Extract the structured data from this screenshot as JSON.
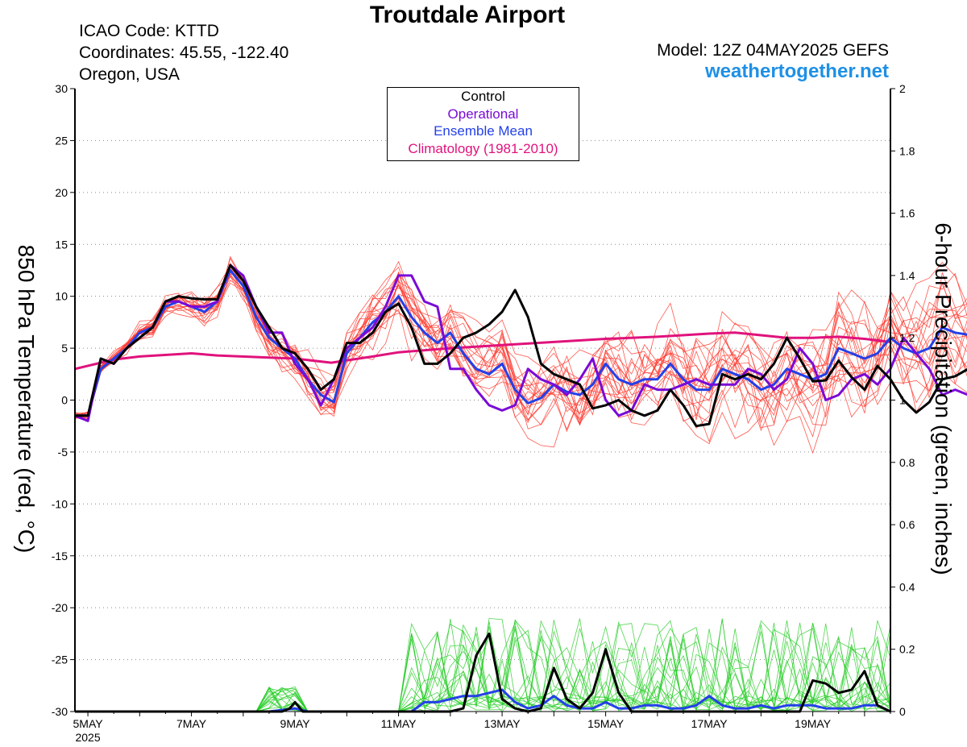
{
  "header": {
    "title": "Troutdale Airport",
    "icao": "ICAO Code: KTTD",
    "coordinates": "Coordinates: 45.55, -122.40",
    "region": "Oregon, USA",
    "model": "Model: 12Z 04MAY2025 GEFS",
    "site": "weathertogether.net"
  },
  "colors": {
    "control": "#000000",
    "operational": "#7a0ad6",
    "ensemble_mean": "#2440e8",
    "climatology": "#e0127c",
    "members_temp": "#ff3b30",
    "members_precip": "#22cc22",
    "site": "#1e90e6"
  },
  "chart_data": {
    "type": "line",
    "title": "Troutdale Airport",
    "ylabel": "850 hPa Temperature (red, °C)",
    "y2label": "6-hour Precipitation (green, inches)",
    "ylim": [
      -30,
      30
    ],
    "y2lim": [
      0,
      2
    ],
    "yticks": [
      -30,
      -25,
      -20,
      -15,
      -10,
      -5,
      0,
      5,
      10,
      15,
      20,
      25,
      30
    ],
    "y2ticks": [
      0,
      0.2,
      0.4,
      0.6,
      0.8,
      1,
      1.2,
      1.4,
      1.6,
      1.8,
      2
    ],
    "xlim": [
      4.75,
      20.5
    ],
    "xticks": [
      {
        "x": 5,
        "label": "5MAY",
        "sub": "2025"
      },
      {
        "x": 7,
        "label": "7MAY"
      },
      {
        "x": 9,
        "label": "9MAY"
      },
      {
        "x": 11,
        "label": "11MAY"
      },
      {
        "x": 13,
        "label": "13MAY"
      },
      {
        "x": 15,
        "label": "15MAY"
      },
      {
        "x": 17,
        "label": "17MAY"
      },
      {
        "x": 19,
        "label": "19MAY"
      }
    ],
    "legend": {
      "placement": "top-center",
      "entries": [
        "Control",
        "Operational",
        "Ensemble Mean",
        "Climatology (1981-2010)"
      ]
    },
    "grid": true,
    "x_note": "x values are days of May 2025 (valid time); temperature series every 6 hours from 5 May 00Z",
    "series": [
      {
        "name": "Control",
        "axis": "temp",
        "color": "#000000",
        "width": 3,
        "x0": 4.75,
        "dx": 0.25,
        "values": [
          -1.5,
          -1.5,
          4,
          3.5,
          5,
          6,
          7,
          9.5,
          10,
          9.8,
          9.7,
          9.7,
          13,
          11.5,
          9,
          7,
          5,
          4.5,
          3,
          1,
          2,
          5.5,
          5.5,
          6.5,
          8.5,
          9.3,
          7,
          3.5,
          3.5,
          4.5,
          6,
          6.5,
          7.3,
          8.5,
          10.6,
          8,
          3.5,
          2.5,
          2,
          1.5,
          -0.8,
          -0.5,
          0,
          -1,
          -1.5,
          -1,
          1,
          -0.5,
          -2.5,
          -2.3,
          2.5,
          2,
          2.5,
          2,
          3.5,
          6,
          4,
          1.8,
          1.9,
          3.8,
          2.2,
          1,
          3.3,
          2,
          0,
          -1.2,
          -0.2,
          2,
          2.3,
          3
        ]
      },
      {
        "name": "Operational",
        "axis": "temp",
        "color": "#7a0ad6",
        "width": 3,
        "x0": 4.75,
        "dx": 0.25,
        "values": [
          -1.5,
          -2,
          4,
          3.5,
          5,
          6,
          7,
          9.5,
          9.5,
          9,
          9,
          9.5,
          13,
          12,
          9,
          6.5,
          6.5,
          3.5,
          2,
          -0.5,
          2,
          5,
          6,
          7,
          9,
          12,
          12,
          9.5,
          9,
          3,
          3,
          1,
          -0.5,
          -1,
          -0.5,
          3,
          2,
          1.5,
          0.5,
          2,
          4,
          0,
          -1.5,
          -1,
          1.5,
          1,
          1,
          1.5,
          2,
          1.5,
          1.5,
          1.5,
          3,
          2.5,
          1,
          2,
          5,
          3.5,
          0,
          0.5,
          2,
          2.5,
          1.5,
          3,
          6,
          4.5,
          3,
          0.5,
          1,
          0.5
        ]
      },
      {
        "name": "Ensemble Mean",
        "axis": "temp",
        "color": "#2440e8",
        "width": 3,
        "x0": 4.75,
        "dx": 0.25,
        "values": [
          -1.5,
          -1.5,
          3,
          4,
          5,
          6.5,
          7,
          9,
          9.5,
          9,
          8.5,
          9.5,
          12.5,
          11,
          8,
          6,
          5,
          4,
          2,
          0.5,
          -0.2,
          4.5,
          6,
          7.5,
          8.5,
          10,
          8,
          6.5,
          5.5,
          6.5,
          4.5,
          3,
          2.5,
          3.5,
          1,
          -0.3,
          0.2,
          1.5,
          0.8,
          0.5,
          1.5,
          3.5,
          2,
          1.5,
          2,
          2,
          3.5,
          2,
          1,
          1,
          3,
          2.5,
          2,
          1,
          1.5,
          3,
          2.5,
          2,
          2.5,
          5,
          4.5,
          4,
          4.5,
          6,
          5,
          4.5,
          5,
          7,
          6.5,
          6.3
        ]
      },
      {
        "name": "Climatology (1981-2010)",
        "axis": "temp",
        "color": "#e0127c",
        "width": 3,
        "points": [
          [
            4.75,
            3
          ],
          [
            5.5,
            3.9
          ],
          [
            6,
            4.2
          ],
          [
            7,
            4.5
          ],
          [
            7.5,
            4.3
          ],
          [
            8.5,
            4.1
          ],
          [
            9,
            4
          ],
          [
            9.7,
            3.6
          ],
          [
            10.5,
            4.2
          ],
          [
            11,
            4.6
          ],
          [
            12,
            5
          ],
          [
            13,
            5.3
          ],
          [
            14,
            5.6
          ],
          [
            15,
            5.9
          ],
          [
            16,
            6.1
          ],
          [
            17,
            6.4
          ],
          [
            17.5,
            6.5
          ],
          [
            18.5,
            6
          ],
          [
            19,
            6
          ],
          [
            19.5,
            6.1
          ],
          [
            20,
            5.9
          ],
          [
            20.5,
            5.6
          ]
        ]
      },
      {
        "name": "Control",
        "axis": "precip",
        "color": "#000000",
        "width": 3,
        "points": [
          [
            4.75,
            0
          ],
          [
            8.75,
            0
          ],
          [
            8.9,
            0.01
          ],
          [
            9,
            0.03
          ],
          [
            9.15,
            0
          ],
          [
            11,
            0
          ],
          [
            12,
            0
          ],
          [
            12.25,
            0.01
          ],
          [
            12.5,
            0.18
          ],
          [
            12.75,
            0.25
          ],
          [
            13,
            0.04
          ],
          [
            13.25,
            0.01
          ],
          [
            13.5,
            0
          ],
          [
            13.75,
            0.01
          ],
          [
            14,
            0.14
          ],
          [
            14.25,
            0.04
          ],
          [
            14.5,
            0.01
          ],
          [
            14.75,
            0.06
          ],
          [
            15,
            0.2
          ],
          [
            15.25,
            0.06
          ],
          [
            15.5,
            0
          ],
          [
            18.75,
            0
          ],
          [
            19,
            0.1
          ],
          [
            19.25,
            0.09
          ],
          [
            19.5,
            0.06
          ],
          [
            19.75,
            0.07
          ],
          [
            20,
            0.13
          ],
          [
            20.25,
            0.02
          ],
          [
            20.5,
            0
          ]
        ]
      },
      {
        "name": "Ensemble Mean",
        "axis": "precip",
        "color": "#2440e8",
        "width": 3,
        "points": [
          [
            4.75,
            0
          ],
          [
            8.5,
            0
          ],
          [
            9,
            0.01
          ],
          [
            9.25,
            0
          ],
          [
            11,
            0
          ],
          [
            11.25,
            0
          ],
          [
            11.5,
            0.03
          ],
          [
            11.75,
            0.03
          ],
          [
            12,
            0.04
          ],
          [
            12.25,
            0.05
          ],
          [
            12.5,
            0.05
          ],
          [
            12.75,
            0.06
          ],
          [
            13,
            0.07
          ],
          [
            13.25,
            0.03
          ],
          [
            13.5,
            0.01
          ],
          [
            13.75,
            0.02
          ],
          [
            14,
            0.05
          ],
          [
            14.25,
            0.02
          ],
          [
            14.5,
            0.01
          ],
          [
            14.75,
            0.01
          ],
          [
            15,
            0.03
          ],
          [
            15.25,
            0.01
          ],
          [
            15.5,
            0.01
          ],
          [
            15.75,
            0.02
          ],
          [
            16,
            0.02
          ],
          [
            16.25,
            0.01
          ],
          [
            16.5,
            0.01
          ],
          [
            16.75,
            0.02
          ],
          [
            17,
            0.05
          ],
          [
            17.25,
            0.02
          ],
          [
            17.5,
            0.01
          ],
          [
            17.75,
            0.01
          ],
          [
            18,
            0.02
          ],
          [
            18.25,
            0.01
          ],
          [
            18.5,
            0.02
          ],
          [
            18.75,
            0.02
          ],
          [
            19,
            0.02
          ],
          [
            19.25,
            0.01
          ],
          [
            19.5,
            0.01
          ],
          [
            19.75,
            0.01
          ],
          [
            20,
            0.02
          ],
          [
            20.25,
            0.02
          ],
          [
            20.5,
            0
          ]
        ]
      }
    ]
  }
}
